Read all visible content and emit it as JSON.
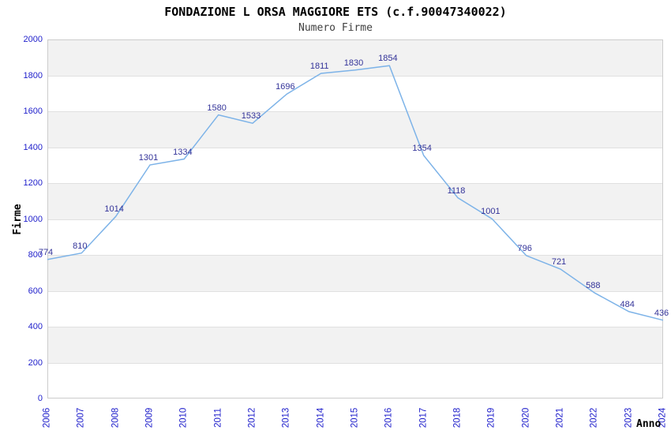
{
  "chart_data": {
    "type": "line",
    "title": "FONDAZIONE L ORSA MAGGIORE ETS (c.f.90047340022)",
    "subtitle": "Numero Firme",
    "xlabel": "Anno",
    "ylabel": "Firme",
    "categories": [
      "2006",
      "2007",
      "2008",
      "2009",
      "2010",
      "2011",
      "2012",
      "2013",
      "2014",
      "2015",
      "2016",
      "2017",
      "2018",
      "2019",
      "2020",
      "2021",
      "2022",
      "2023",
      "2024"
    ],
    "series": [
      {
        "name": "Numero Firme",
        "values": [
          774,
          810,
          1014,
          1301,
          1334,
          1580,
          1533,
          1696,
          1811,
          1830,
          1854,
          1354,
          1118,
          1001,
          796,
          721,
          588,
          484,
          436
        ]
      }
    ],
    "ylim": [
      0,
      2000
    ],
    "ytick_step": 200,
    "legend": "none",
    "grid": "horizontal-bands-alternating",
    "point_labels": true,
    "colors": {
      "line": "#7db3e8",
      "tick_text": "#2222cc",
      "point_label_text": "#333399",
      "band_fill": "#f2f2f2",
      "band_fill_alt": "#ffffff",
      "gridline": "#e0e0e0",
      "plot_border": "#cccccc",
      "title_text": "#000000",
      "subtitle_text": "#404040",
      "axis_label_text": "#000000"
    }
  }
}
